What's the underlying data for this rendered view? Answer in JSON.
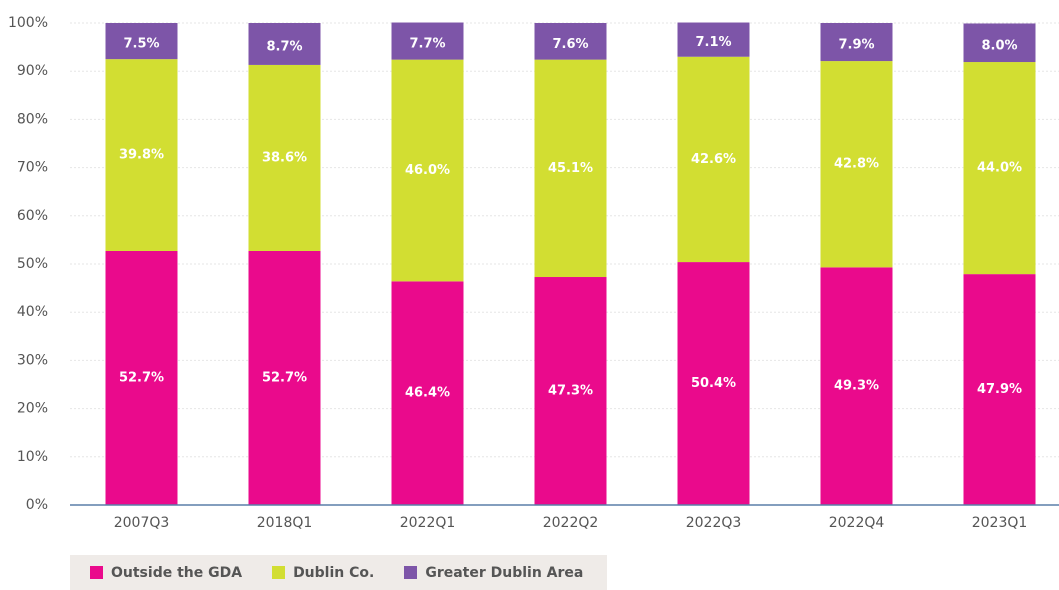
{
  "chart_data": {
    "type": "stacked_bar",
    "categories": [
      "2007Q3",
      "2018Q1",
      "2022Q1",
      "2022Q2",
      "2022Q3",
      "2022Q4",
      "2023Q1"
    ],
    "series": [
      {
        "name": "Outside the GDA",
        "color": "#ea0a8c",
        "values": [
          52.7,
          52.7,
          46.4,
          47.3,
          50.4,
          49.3,
          47.9
        ],
        "value_labels": [
          "52.7%",
          "52.7%",
          "46.4%",
          "47.3%",
          "50.4%",
          "49.3%",
          "47.9%"
        ]
      },
      {
        "name": "Dublin Co.",
        "color": "#d2de32",
        "values": [
          39.8,
          38.6,
          46.0,
          45.1,
          42.6,
          42.8,
          44.0
        ],
        "value_labels": [
          "39.8%",
          "38.6%",
          "46.0%",
          "45.1%",
          "42.6%",
          "42.8%",
          "44.0%"
        ]
      },
      {
        "name": "Greater Dublin Area",
        "color": "#7d55a8",
        "values": [
          7.5,
          8.7,
          7.7,
          7.6,
          7.1,
          7.9,
          8.0
        ],
        "value_labels": [
          "7.5%",
          "8.7%",
          "7.7%",
          "7.6%",
          "7.1%",
          "7.9%",
          "8.0%"
        ]
      }
    ],
    "ylim": [
      0,
      100
    ],
    "yticks": [
      {
        "value": 0,
        "label": "0%"
      },
      {
        "value": 10,
        "label": "10%"
      },
      {
        "value": 20,
        "label": "20%"
      },
      {
        "value": 30,
        "label": "30%"
      },
      {
        "value": 40,
        "label": "40%"
      },
      {
        "value": 50,
        "label": "50%"
      },
      {
        "value": 60,
        "label": "60%"
      },
      {
        "value": 70,
        "label": "70%"
      },
      {
        "value": 80,
        "label": "80%"
      },
      {
        "value": 90,
        "label": "90%"
      },
      {
        "value": 100,
        "label": "100%"
      }
    ],
    "grid": true
  }
}
